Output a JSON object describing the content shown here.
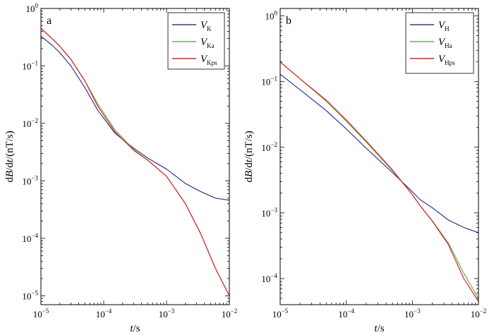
{
  "chart_data": [
    {
      "type": "line",
      "panel_label": "a",
      "xscale": "log",
      "yscale": "log",
      "xlim": [
        1e-05,
        0.01
      ],
      "ylim": [
        7e-06,
        1
      ],
      "x_ticks": [
        {
          "value": 1e-05,
          "base": "10",
          "exp": "−5"
        },
        {
          "value": 0.0001,
          "base": "10",
          "exp": "−4"
        },
        {
          "value": 0.001,
          "base": "10",
          "exp": "−3"
        },
        {
          "value": 0.01,
          "base": "10",
          "exp": "−2"
        }
      ],
      "y_ticks": [
        {
          "value": 1e-05,
          "base": "10",
          "exp": "−5"
        },
        {
          "value": 0.0001,
          "base": "10",
          "exp": "−4"
        },
        {
          "value": 0.001,
          "base": "10",
          "exp": "−3"
        },
        {
          "value": 0.01,
          "base": "10",
          "exp": "−2"
        },
        {
          "value": 0.1,
          "base": "10",
          "exp": "−1"
        },
        {
          "value": 1,
          "base": "10",
          "exp": "0"
        }
      ],
      "xlabel": {
        "italic": "t",
        "rest": "/s"
      },
      "ylabel": {
        "p1": "d",
        "p2": "B",
        "p3": "/d",
        "p4": "t",
        "p5": "/(nT/s)"
      },
      "legend_position": "top-right",
      "series": [
        {
          "name": "V",
          "sub": "K",
          "color": "#2f3a8f",
          "x": [
            1e-05,
            1.5e-05,
            2e-05,
            3e-05,
            5e-05,
            8e-05,
            0.00015,
            0.0003,
            0.0005,
            0.001,
            0.002,
            0.0035,
            0.006,
            0.01
          ],
          "y": [
            0.33,
            0.23,
            0.17,
            0.1,
            0.042,
            0.017,
            0.0068,
            0.0037,
            0.0025,
            0.0016,
            0.0009,
            0.00065,
            0.0005,
            0.00046
          ]
        },
        {
          "name": "V",
          "sub": "Ka",
          "color": "#6ab04c",
          "x": [
            1e-05,
            1.5e-05,
            2e-05,
            3e-05,
            5e-05,
            8e-05,
            0.00015,
            0.0003,
            0.0005,
            0.001,
            0.002,
            0.0035,
            0.006,
            0.01
          ],
          "y": [
            0.45,
            0.3,
            0.22,
            0.13,
            0.055,
            0.022,
            0.0078,
            0.0035,
            0.0023,
            0.0012,
            0.0004,
            0.00012,
            3e-05,
            1e-05
          ]
        },
        {
          "name": "V",
          "sub": "Kps",
          "color": "#d9232a",
          "x": [
            1e-05,
            1.5e-05,
            2e-05,
            3e-05,
            5e-05,
            8e-05,
            0.00015,
            0.0003,
            0.0005,
            0.001,
            0.002,
            0.0035,
            0.006,
            0.01
          ],
          "y": [
            0.45,
            0.3,
            0.22,
            0.13,
            0.055,
            0.02,
            0.0072,
            0.0034,
            0.0023,
            0.0012,
            0.0004,
            0.00012,
            3e-05,
            1e-05
          ]
        }
      ]
    },
    {
      "type": "line",
      "panel_label": "b",
      "xscale": "log",
      "yscale": "log",
      "xlim": [
        1e-05,
        0.01
      ],
      "ylim": [
        4e-05,
        1.3
      ],
      "x_ticks": [
        {
          "value": 1e-05,
          "base": "10",
          "exp": "−5"
        },
        {
          "value": 0.0001,
          "base": "10",
          "exp": "−4"
        },
        {
          "value": 0.001,
          "base": "10",
          "exp": "−3"
        },
        {
          "value": 0.01,
          "base": "10",
          "exp": "−2"
        }
      ],
      "y_ticks": [
        {
          "value": 0.0001,
          "base": "10",
          "exp": "−4"
        },
        {
          "value": 0.001,
          "base": "10",
          "exp": "−3"
        },
        {
          "value": 0.01,
          "base": "10",
          "exp": "−2"
        },
        {
          "value": 0.1,
          "base": "10",
          "exp": "−1"
        },
        {
          "value": 1,
          "base": "10",
          "exp": "0"
        }
      ],
      "xlabel": {
        "italic": "t",
        "rest": "/s"
      },
      "ylabel": {
        "p1": "d",
        "p2": "B",
        "p3": "/d",
        "p4": "t",
        "p5": "/(nT/s)"
      },
      "legend_position": "top-right",
      "series": [
        {
          "name": "V",
          "sub": "H",
          "color": "#2f3a8f",
          "x": [
            1e-05,
            2e-05,
            5e-05,
            0.0001,
            0.0002,
            0.0005,
            0.001,
            0.0013,
            0.002,
            0.0035,
            0.006,
            0.01
          ],
          "y": [
            0.13,
            0.075,
            0.036,
            0.019,
            0.0097,
            0.0041,
            0.0021,
            0.0016,
            0.0012,
            0.00078,
            0.0006,
            0.0005
          ]
        },
        {
          "name": "V",
          "sub": "Ha",
          "color": "#6ab04c",
          "x": [
            1e-05,
            2e-05,
            5e-05,
            0.0001,
            0.0002,
            0.0005,
            0.001,
            0.0013,
            0.002,
            0.0035,
            0.006,
            0.01
          ],
          "y": [
            0.2,
            0.11,
            0.05,
            0.025,
            0.012,
            0.0044,
            0.0019,
            0.0013,
            0.00076,
            0.00035,
            0.00012,
            5e-05
          ]
        },
        {
          "name": "V",
          "sub": "Hps",
          "color": "#d9232a",
          "x": [
            1e-05,
            2e-05,
            5e-05,
            0.0001,
            0.0002,
            0.0005,
            0.001,
            0.0013,
            0.002,
            0.0035,
            0.006,
            0.01
          ],
          "y": [
            0.2,
            0.11,
            0.052,
            0.026,
            0.0125,
            0.0045,
            0.0019,
            0.0013,
            0.00075,
            0.00033,
            0.0001,
            4.5e-05
          ]
        }
      ]
    }
  ]
}
